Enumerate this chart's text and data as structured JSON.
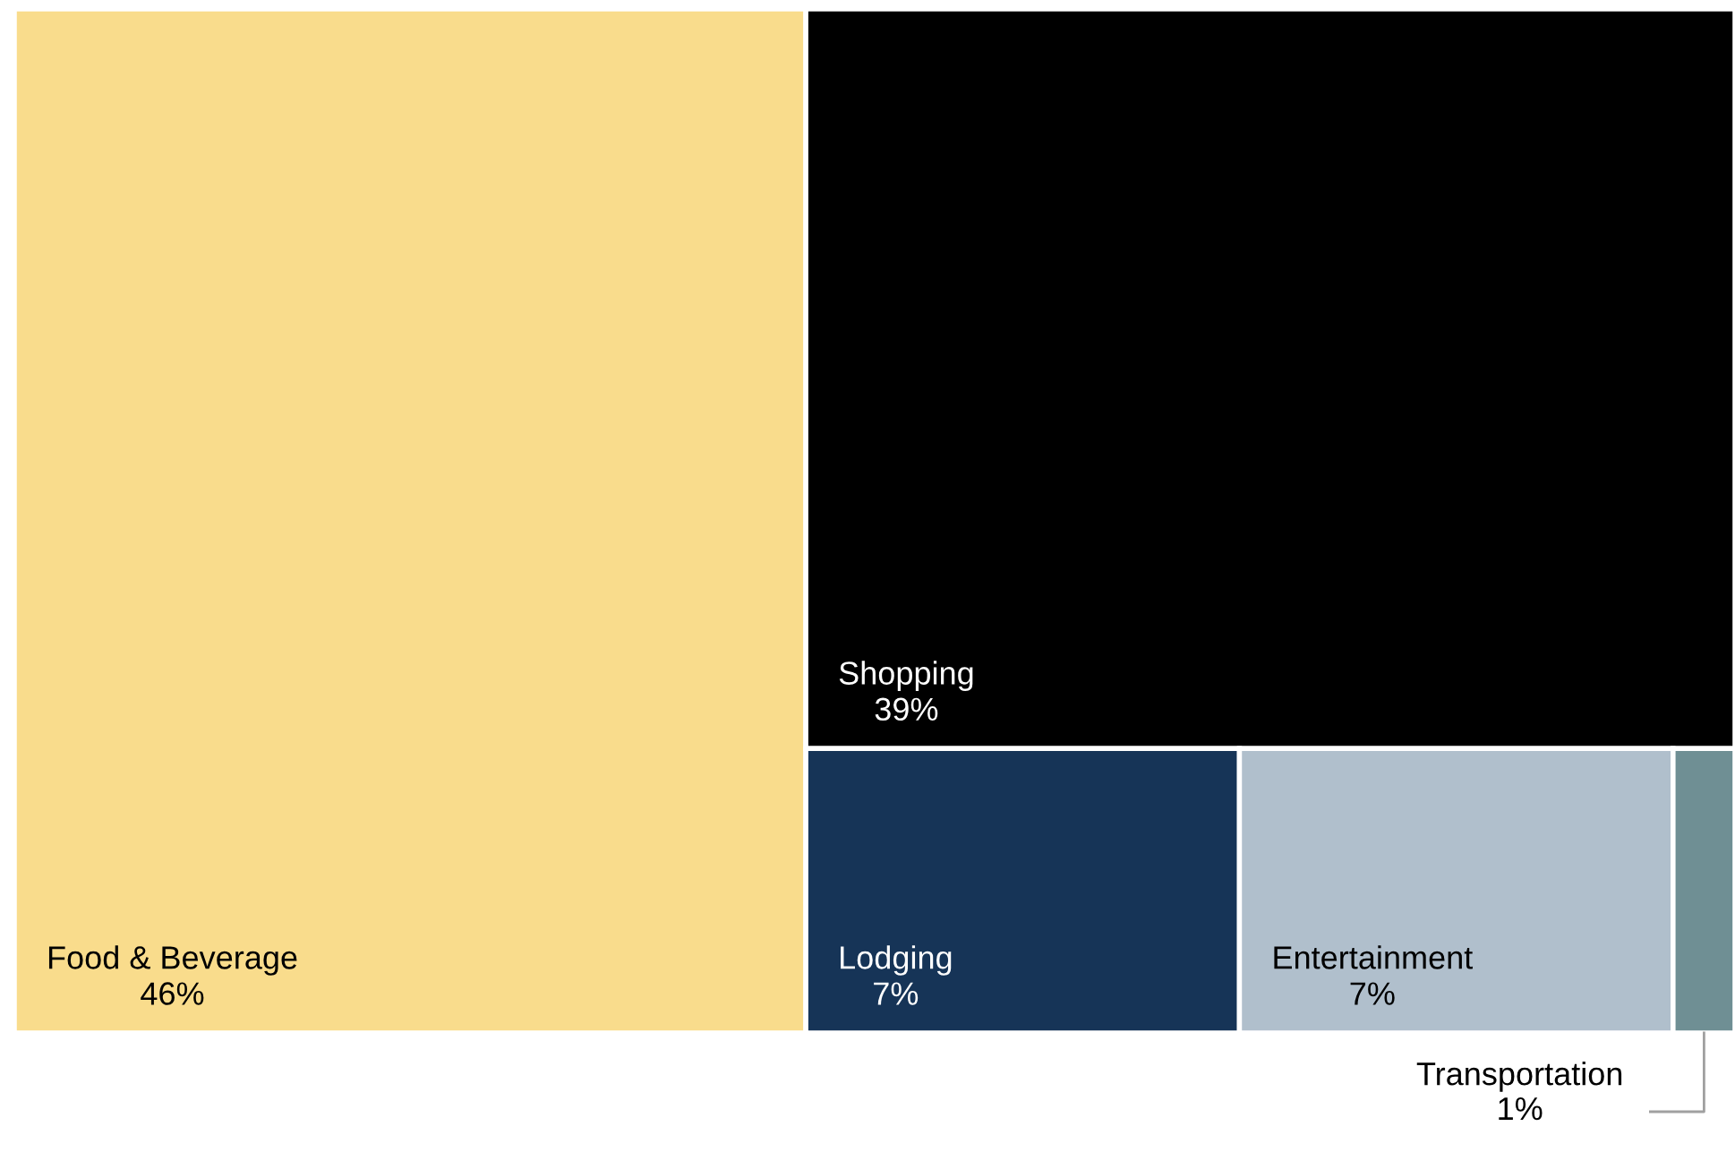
{
  "chart_data": {
    "type": "other",
    "categories": [
      "Food & Beverage",
      "Shopping",
      "Lodging",
      "Entertainment",
      "Transportation"
    ],
    "values": [
      46,
      39,
      7,
      7,
      1
    ],
    "value_labels": [
      "46%",
      "39%",
      "7%",
      "7%",
      "1%"
    ],
    "colors": [
      "#f9dc8c",
      "#000000",
      "#163457",
      "#b0bfcc",
      "#6f8f94"
    ]
  }
}
